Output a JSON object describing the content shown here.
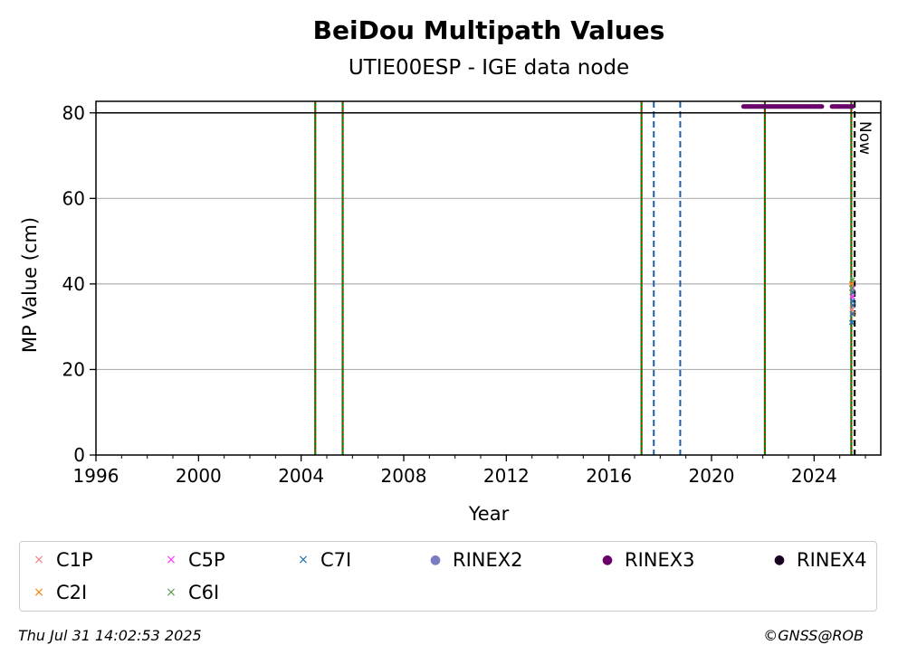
{
  "chart_data": {
    "type": "scatter",
    "title": "BeiDou Multipath Values",
    "subtitle": "UTIE00ESP - IGE data node",
    "xlabel": "Year",
    "ylabel": "MP Value (cm)",
    "xlim": [
      1996,
      2026.6
    ],
    "ylim": [
      0,
      82.7
    ],
    "x_ticks": [
      1996,
      2000,
      2004,
      2008,
      2012,
      2016,
      2020,
      2024
    ],
    "x_tick_labels": [
      "1996",
      "2000",
      "2004",
      "2008",
      "2012",
      "2016",
      "2020",
      "2024"
    ],
    "y_ticks": [
      0,
      20,
      40,
      60,
      80
    ],
    "y_tick_labels": [
      "0",
      "20",
      "40",
      "60",
      "80"
    ],
    "grid": "horizontal",
    "threshold_line": {
      "y": 80,
      "color": "#000000"
    },
    "receiver_change_lines": [
      2004.55,
      2005.62,
      2017.27,
      2022.08,
      2025.45
    ],
    "antenna_change_lines": [
      2017.75,
      2018.78
    ],
    "now_line": {
      "x": 2025.58,
      "label": "Now"
    },
    "series": [
      {
        "name": "C1P",
        "marker": "x",
        "color": "#f08080",
        "x": [
          2025.48,
          2025.5
        ],
        "y": [
          34,
          36
        ]
      },
      {
        "name": "C2I",
        "marker": "x",
        "color": "#ff7f0e",
        "x": [
          2025.46,
          2025.48,
          2025.5,
          2025.52
        ],
        "y": [
          40,
          38,
          35,
          33
        ]
      },
      {
        "name": "C5P",
        "marker": "x",
        "color": "#ff33ff",
        "x": [
          2025.49,
          2025.51
        ],
        "y": [
          37,
          39
        ]
      },
      {
        "name": "C6I",
        "marker": "x",
        "color": "#5b9e4d",
        "x": [
          2025.47,
          2025.5
        ],
        "y": [
          39,
          41
        ]
      },
      {
        "name": "C7I",
        "marker": "x",
        "color": "#1f6fb4",
        "x": [
          2025.47,
          2025.49,
          2025.5,
          2025.51,
          2025.52
        ],
        "y": [
          31,
          33,
          36,
          38,
          35
        ]
      },
      {
        "name": "RINEX2",
        "marker": "o",
        "color": "#7b7bbf",
        "x": [],
        "y": []
      },
      {
        "name": "RINEX3",
        "marker": "o",
        "color": "#6a006a",
        "x_ranges": [
          [
            2021.25,
            2024.3
          ],
          [
            2024.7,
            2025.5
          ]
        ],
        "y": 81.5
      },
      {
        "name": "RINEX4",
        "marker": "o",
        "color": "#1a0020",
        "x": [],
        "y": []
      }
    ],
    "legend_position": "bottom"
  },
  "legend": [
    {
      "label": "C1P",
      "symbol": "×",
      "color": "#f08080"
    },
    {
      "label": "C5P",
      "symbol": "×",
      "color": "#ff33ff"
    },
    {
      "label": "C7I",
      "symbol": "×",
      "color": "#1f6fb4"
    },
    {
      "label": "RINEX2",
      "symbol": "●",
      "color": "#7b7bbf"
    },
    {
      "label": "RINEX3",
      "symbol": "●",
      "color": "#6a006a"
    },
    {
      "label": "RINEX4",
      "symbol": "●",
      "color": "#1a0020"
    },
    {
      "label": "C2I",
      "symbol": "×",
      "color": "#ff7f0e"
    },
    {
      "label": "C6I",
      "symbol": "×",
      "color": "#5b9e4d"
    }
  ],
  "footer": {
    "timestamp": "Thu Jul 31 14:02:53 2025",
    "credit": "©GNSS@ROB"
  }
}
